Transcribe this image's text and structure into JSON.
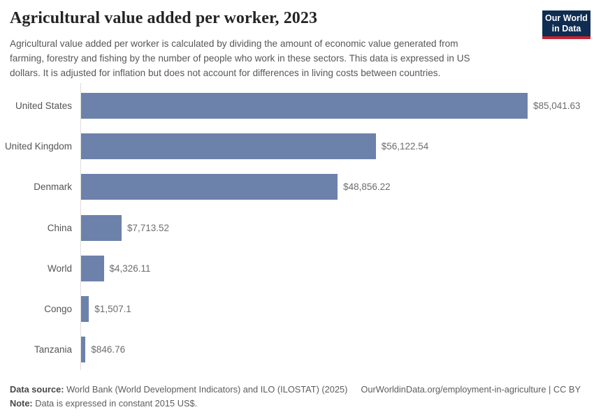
{
  "header": {
    "title": "Agricultural value added per worker, 2023",
    "subtitle_lines": [
      "Agricultural value added per worker is calculated by dividing the amount of economic value generated from",
      "farming, forestry and fishing by the number of people who work in these sectors. This data is expressed in US",
      "dollars. It is adjusted for inflation but does not account for differences in living costs between countries."
    ],
    "logo": {
      "line1": "Our World",
      "line2": "in Data"
    }
  },
  "chart_data": {
    "type": "bar",
    "orientation": "horizontal",
    "title": "Agricultural value added per worker, 2023",
    "xlabel": "",
    "ylabel": "",
    "unit": "constant 2015 US$",
    "grid": false,
    "xlim": [
      0,
      85041.63
    ],
    "categories": [
      "United States",
      "United Kingdom",
      "Denmark",
      "China",
      "World",
      "Congo",
      "Tanzania"
    ],
    "values": [
      85041.63,
      56122.54,
      48856.22,
      7713.52,
      4326.11,
      1507.1,
      846.76
    ],
    "value_labels": [
      "$85,041.63",
      "$56,122.54",
      "$48,856.22",
      "$7,713.52",
      "$4,326.11",
      "$1,507.1",
      "$846.76"
    ],
    "bar_color": "#6c82ab",
    "axis_color": "#dcdcdc"
  },
  "footer": {
    "source_label": "Data source:",
    "source_text": " World Bank (World Development Indicators) and ILO (ILOSTAT) (2025)",
    "link_text": "OurWorldinData.org/employment-in-agriculture | CC BY",
    "note_label": "Note:",
    "note_text": " Data is expressed in constant 2015 US$."
  },
  "colors": {
    "bar": "#6c82ab",
    "logo_navy": "#0f2d52",
    "logo_red": "#c8232d",
    "axis": "#dcdcdc"
  }
}
